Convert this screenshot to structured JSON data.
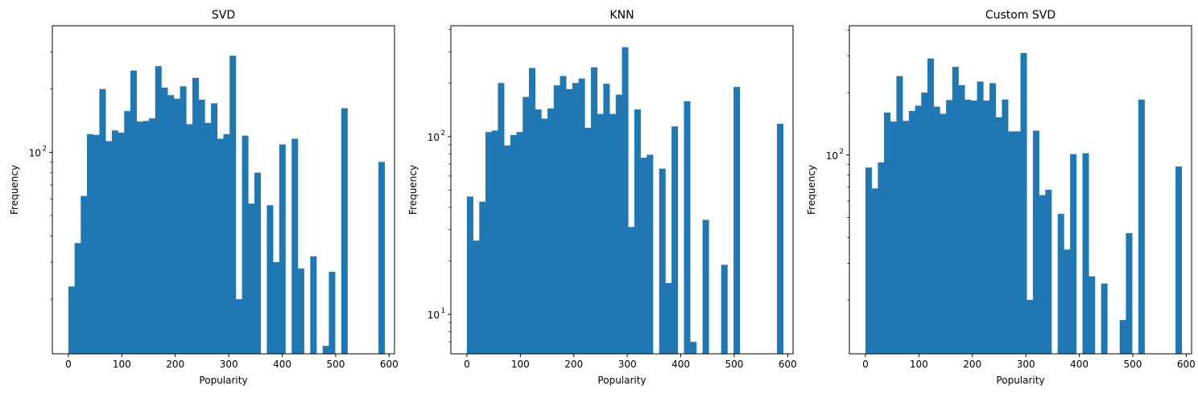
{
  "chart_data": [
    {
      "type": "bar",
      "title": "SVD",
      "xlabel": "Popularity",
      "ylabel": "Frequency",
      "yscale": "log",
      "xlim": [
        -30,
        610
      ],
      "ylim": [
        11,
        400
      ],
      "xticks": [
        0,
        100,
        200,
        300,
        400,
        500,
        600
      ],
      "yticks": [
        {
          "value": 100,
          "label": "10",
          "exp": "2"
        }
      ],
      "bin_width": 11.6,
      "bins": [
        {
          "x": 0,
          "y": 23
        },
        {
          "x": 11.6,
          "y": 37
        },
        {
          "x": 23.2,
          "y": 62
        },
        {
          "x": 34.8,
          "y": 122
        },
        {
          "x": 46.4,
          "y": 121
        },
        {
          "x": 58,
          "y": 200
        },
        {
          "x": 69.6,
          "y": 113
        },
        {
          "x": 81.2,
          "y": 127
        },
        {
          "x": 92.8,
          "y": 124
        },
        {
          "x": 104.4,
          "y": 157
        },
        {
          "x": 116,
          "y": 245
        },
        {
          "x": 127.6,
          "y": 140
        },
        {
          "x": 139.2,
          "y": 141
        },
        {
          "x": 150.8,
          "y": 145
        },
        {
          "x": 162.4,
          "y": 257
        },
        {
          "x": 174,
          "y": 203
        },
        {
          "x": 185.6,
          "y": 187
        },
        {
          "x": 197.2,
          "y": 180
        },
        {
          "x": 208.8,
          "y": 206
        },
        {
          "x": 220.4,
          "y": 136
        },
        {
          "x": 232,
          "y": 226
        },
        {
          "x": 243.6,
          "y": 178
        },
        {
          "x": 255.2,
          "y": 138
        },
        {
          "x": 266.8,
          "y": 171
        },
        {
          "x": 278.4,
          "y": 116
        },
        {
          "x": 290,
          "y": 122
        },
        {
          "x": 301.6,
          "y": 288
        },
        {
          "x": 313.2,
          "y": 20
        },
        {
          "x": 324.8,
          "y": 120
        },
        {
          "x": 336.4,
          "y": 57
        },
        {
          "x": 348,
          "y": 80
        },
        {
          "x": 359.6,
          "y": 0
        },
        {
          "x": 371.2,
          "y": 56
        },
        {
          "x": 382.8,
          "y": 30
        },
        {
          "x": 394.4,
          "y": 109
        },
        {
          "x": 406,
          "y": 0
        },
        {
          "x": 417.6,
          "y": 116
        },
        {
          "x": 429.2,
          "y": 28
        },
        {
          "x": 440.8,
          "y": 0
        },
        {
          "x": 452.4,
          "y": 32
        },
        {
          "x": 464,
          "y": 0
        },
        {
          "x": 475.6,
          "y": 12
        },
        {
          "x": 487.2,
          "y": 27
        },
        {
          "x": 498.8,
          "y": 0
        },
        {
          "x": 510.4,
          "y": 162
        },
        {
          "x": 522,
          "y": 0
        },
        {
          "x": 533.6,
          "y": 0
        },
        {
          "x": 545.2,
          "y": 0
        },
        {
          "x": 556.8,
          "y": 0
        },
        {
          "x": 568.4,
          "y": 0
        },
        {
          "x": 580,
          "y": 90
        }
      ]
    },
    {
      "type": "bar",
      "title": "KNN",
      "xlabel": "Popularity",
      "ylabel": "Frequency",
      "yscale": "log",
      "xlim": [
        -30,
        610
      ],
      "ylim": [
        6,
        420
      ],
      "xticks": [
        0,
        100,
        200,
        300,
        400,
        500,
        600
      ],
      "yticks": [
        {
          "value": 10,
          "label": "10",
          "exp": "1"
        },
        {
          "value": 100,
          "label": "10",
          "exp": "2"
        }
      ],
      "bin_width": 11.6,
      "bins": [
        {
          "x": 0,
          "y": 46
        },
        {
          "x": 11.6,
          "y": 26
        },
        {
          "x": 23.2,
          "y": 43
        },
        {
          "x": 34.8,
          "y": 106
        },
        {
          "x": 46.4,
          "y": 108
        },
        {
          "x": 58,
          "y": 200
        },
        {
          "x": 69.6,
          "y": 89
        },
        {
          "x": 81.2,
          "y": 102
        },
        {
          "x": 92.8,
          "y": 106
        },
        {
          "x": 104.4,
          "y": 167
        },
        {
          "x": 116,
          "y": 243
        },
        {
          "x": 127.6,
          "y": 142
        },
        {
          "x": 139.2,
          "y": 126
        },
        {
          "x": 150.8,
          "y": 144
        },
        {
          "x": 162.4,
          "y": 194
        },
        {
          "x": 174,
          "y": 219
        },
        {
          "x": 185.6,
          "y": 185
        },
        {
          "x": 197.2,
          "y": 200
        },
        {
          "x": 208.8,
          "y": 212
        },
        {
          "x": 220.4,
          "y": 112
        },
        {
          "x": 232,
          "y": 245
        },
        {
          "x": 243.6,
          "y": 134
        },
        {
          "x": 255.2,
          "y": 198
        },
        {
          "x": 266.8,
          "y": 134
        },
        {
          "x": 278.4,
          "y": 172
        },
        {
          "x": 290,
          "y": 318
        },
        {
          "x": 301.6,
          "y": 31
        },
        {
          "x": 313.2,
          "y": 142
        },
        {
          "x": 324.8,
          "y": 76
        },
        {
          "x": 336.4,
          "y": 79
        },
        {
          "x": 348,
          "y": 0
        },
        {
          "x": 359.6,
          "y": 66
        },
        {
          "x": 371.2,
          "y": 15
        },
        {
          "x": 382.8,
          "y": 114
        },
        {
          "x": 394.4,
          "y": 0
        },
        {
          "x": 406,
          "y": 158
        },
        {
          "x": 417.6,
          "y": 7
        },
        {
          "x": 429.2,
          "y": 0
        },
        {
          "x": 440.8,
          "y": 34
        },
        {
          "x": 452.4,
          "y": 0
        },
        {
          "x": 464,
          "y": 0
        },
        {
          "x": 475.6,
          "y": 19
        },
        {
          "x": 487.2,
          "y": 0
        },
        {
          "x": 498.8,
          "y": 190
        },
        {
          "x": 510.4,
          "y": 0
        },
        {
          "x": 522,
          "y": 0
        },
        {
          "x": 533.6,
          "y": 0
        },
        {
          "x": 545.2,
          "y": 0
        },
        {
          "x": 556.8,
          "y": 0
        },
        {
          "x": 568.4,
          "y": 0
        },
        {
          "x": 580,
          "y": 118
        }
      ]
    },
    {
      "type": "bar",
      "title": "Custom SVD",
      "xlabel": "Popularity",
      "ylabel": "Frequency",
      "yscale": "log",
      "xlim": [
        -30,
        610
      ],
      "ylim": [
        11,
        420
      ],
      "xticks": [
        0,
        100,
        200,
        300,
        400,
        500,
        600
      ],
      "yticks": [
        {
          "value": 100,
          "label": "10",
          "exp": "2"
        }
      ],
      "bin_width": 11.6,
      "bins": [
        {
          "x": 0,
          "y": 87
        },
        {
          "x": 11.6,
          "y": 69
        },
        {
          "x": 23.2,
          "y": 92
        },
        {
          "x": 34.8,
          "y": 160
        },
        {
          "x": 46.4,
          "y": 145
        },
        {
          "x": 58,
          "y": 240
        },
        {
          "x": 69.6,
          "y": 146
        },
        {
          "x": 81.2,
          "y": 163
        },
        {
          "x": 92.8,
          "y": 173
        },
        {
          "x": 104.4,
          "y": 200
        },
        {
          "x": 116,
          "y": 292
        },
        {
          "x": 127.6,
          "y": 171
        },
        {
          "x": 139.2,
          "y": 158
        },
        {
          "x": 150.8,
          "y": 184
        },
        {
          "x": 162.4,
          "y": 266
        },
        {
          "x": 174,
          "y": 217
        },
        {
          "x": 185.6,
          "y": 185
        },
        {
          "x": 197.2,
          "y": 183
        },
        {
          "x": 208.8,
          "y": 226
        },
        {
          "x": 220.4,
          "y": 183
        },
        {
          "x": 232,
          "y": 222
        },
        {
          "x": 243.6,
          "y": 152
        },
        {
          "x": 255.2,
          "y": 185
        },
        {
          "x": 266.8,
          "y": 130
        },
        {
          "x": 278.4,
          "y": 130
        },
        {
          "x": 290,
          "y": 310
        },
        {
          "x": 301.6,
          "y": 20
        },
        {
          "x": 313.2,
          "y": 131
        },
        {
          "x": 324.8,
          "y": 64
        },
        {
          "x": 336.4,
          "y": 68
        },
        {
          "x": 348,
          "y": 0
        },
        {
          "x": 359.6,
          "y": 52
        },
        {
          "x": 371.2,
          "y": 35
        },
        {
          "x": 382.8,
          "y": 101
        },
        {
          "x": 394.4,
          "y": 0
        },
        {
          "x": 406,
          "y": 102
        },
        {
          "x": 417.6,
          "y": 26
        },
        {
          "x": 429.2,
          "y": 0
        },
        {
          "x": 440.8,
          "y": 24
        },
        {
          "x": 452.4,
          "y": 0
        },
        {
          "x": 464,
          "y": 0
        },
        {
          "x": 475.6,
          "y": 16
        },
        {
          "x": 487.2,
          "y": 42
        },
        {
          "x": 498.8,
          "y": 0
        },
        {
          "x": 510.4,
          "y": 185
        },
        {
          "x": 522,
          "y": 0
        },
        {
          "x": 533.6,
          "y": 0
        },
        {
          "x": 545.2,
          "y": 0
        },
        {
          "x": 556.8,
          "y": 0
        },
        {
          "x": 568.4,
          "y": 0
        },
        {
          "x": 580,
          "y": 88
        }
      ]
    }
  ],
  "style": {
    "bar_color": "#1f77b4",
    "axis_color": "#000000",
    "background": "#ffffff"
  }
}
